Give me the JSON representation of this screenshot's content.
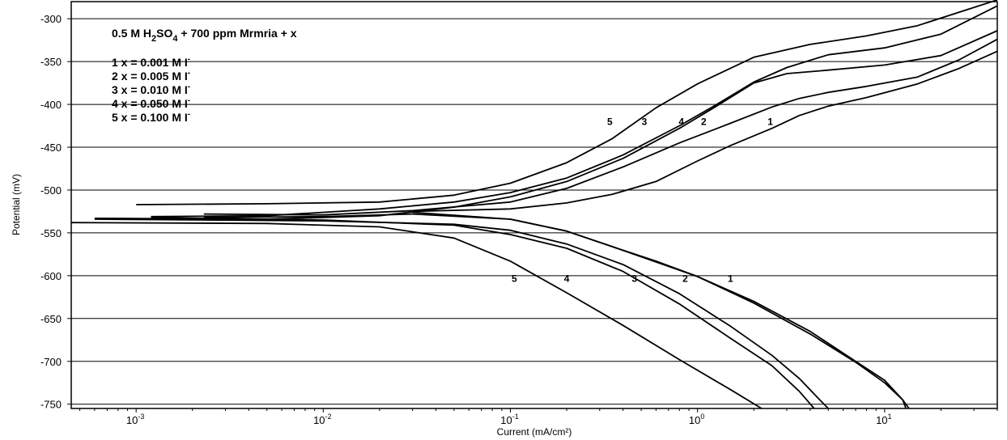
{
  "chart_data": {
    "type": "line",
    "title": "",
    "xlabel": "Current (mA/cm²)",
    "ylabel": "Potential (mV)",
    "x_scale": "log",
    "xlim": [
      0.00045,
      40
    ],
    "ylim": [
      -755,
      -280
    ],
    "grid": "horizontal",
    "x_ticks": [
      {
        "value": 0.001,
        "base": "10",
        "exp": "-3"
      },
      {
        "value": 0.01,
        "base": "10",
        "exp": "-2"
      },
      {
        "value": 0.1,
        "base": "10",
        "exp": "-1"
      },
      {
        "value": 1,
        "base": "10",
        "exp": "0"
      },
      {
        "value": 10,
        "base": "10",
        "exp": "1"
      }
    ],
    "y_ticks": [
      -300,
      -350,
      -400,
      -450,
      -500,
      -550,
      -600,
      -650,
      -700,
      -750
    ],
    "legend": {
      "heading": {
        "prefix": "0.5 M H",
        "sub1": "2",
        "mid": "SO",
        "sub2": "4",
        "suffix": " + 700 ppm Mrmria + x"
      },
      "entries": [
        {
          "text": "1 x = 0.001 M I",
          "sup": "-"
        },
        {
          "text": "2 x = 0.005 M I",
          "sup": "-"
        },
        {
          "text": "3 x = 0.010 M I",
          "sup": "-"
        },
        {
          "text": "4 x = 0.050 M I",
          "sup": "-"
        },
        {
          "text": "5 x = 0.100 M I",
          "sup": "-"
        }
      ]
    },
    "series": [
      {
        "label": "1",
        "anodic": [
          [
            0.03,
            -525
          ],
          [
            0.1,
            -522
          ],
          [
            0.2,
            -515
          ],
          [
            0.35,
            -505
          ],
          [
            0.6,
            -490
          ],
          [
            1.0,
            -466
          ],
          [
            1.5,
            -448
          ],
          [
            2.5,
            -428
          ],
          [
            3.5,
            -413
          ],
          [
            5,
            -402
          ],
          [
            8,
            -392
          ],
          [
            15,
            -376
          ],
          [
            25,
            -358
          ],
          [
            40,
            -338
          ]
        ],
        "cathodic": [
          [
            0.03,
            -526
          ],
          [
            0.1,
            -534
          ],
          [
            0.2,
            -548
          ],
          [
            0.35,
            -566
          ],
          [
            0.6,
            -584
          ],
          [
            1.0,
            -601
          ],
          [
            2.0,
            -630
          ],
          [
            4.0,
            -665
          ],
          [
            7.0,
            -700
          ],
          [
            10,
            -722
          ],
          [
            12.5,
            -745
          ],
          [
            13,
            -755
          ]
        ]
      },
      {
        "label": "2",
        "anodic": [
          [
            0.0023,
            -528
          ],
          [
            0.01,
            -529
          ],
          [
            0.03,
            -524
          ],
          [
            0.1,
            -514
          ],
          [
            0.2,
            -498
          ],
          [
            0.4,
            -473
          ],
          [
            0.8,
            -445
          ],
          [
            1.5,
            -422
          ],
          [
            2.5,
            -403
          ],
          [
            3.5,
            -393
          ],
          [
            5,
            -386
          ],
          [
            8,
            -379
          ],
          [
            15,
            -368
          ],
          [
            25,
            -348
          ],
          [
            40,
            -324
          ]
        ],
        "cathodic": [
          [
            0.0023,
            -532
          ],
          [
            0.01,
            -531
          ],
          [
            0.03,
            -528
          ],
          [
            0.1,
            -534
          ],
          [
            0.2,
            -548
          ],
          [
            0.35,
            -566
          ],
          [
            0.6,
            -583
          ],
          [
            1.0,
            -601
          ],
          [
            2.0,
            -632
          ],
          [
            4.0,
            -668
          ],
          [
            7.0,
            -701
          ],
          [
            10,
            -725
          ],
          [
            12.5,
            -745
          ],
          [
            13.5,
            -755
          ]
        ]
      },
      {
        "label": "3",
        "anodic": [
          [
            0.0006,
            -533
          ],
          [
            0.005,
            -534
          ],
          [
            0.02,
            -530
          ],
          [
            0.05,
            -520
          ],
          [
            0.1,
            -508
          ],
          [
            0.2,
            -490
          ],
          [
            0.4,
            -463
          ],
          [
            0.8,
            -428
          ],
          [
            1.2,
            -405
          ],
          [
            2,
            -375
          ],
          [
            3,
            -364
          ],
          [
            5,
            -360
          ],
          [
            10,
            -354
          ],
          [
            20,
            -343
          ],
          [
            40,
            -314
          ]
        ],
        "cathodic": [
          [
            0.0006,
            -534
          ],
          [
            0.01,
            -536
          ],
          [
            0.05,
            -540
          ],
          [
            0.1,
            -547
          ],
          [
            0.2,
            -563
          ],
          [
            0.4,
            -587
          ],
          [
            0.8,
            -621
          ],
          [
            1.5,
            -659
          ],
          [
            2.5,
            -693
          ],
          [
            3.5,
            -720
          ],
          [
            4.5,
            -745
          ],
          [
            5,
            -755
          ]
        ]
      },
      {
        "label": "4",
        "anodic": [
          [
            0.0012,
            -531
          ],
          [
            0.005,
            -530
          ],
          [
            0.02,
            -522
          ],
          [
            0.05,
            -514
          ],
          [
            0.1,
            -503
          ],
          [
            0.2,
            -486
          ],
          [
            0.4,
            -459
          ],
          [
            0.8,
            -425
          ],
          [
            1.2,
            -403
          ],
          [
            2,
            -374
          ],
          [
            3,
            -357
          ],
          [
            5,
            -342
          ],
          [
            10,
            -334
          ],
          [
            20,
            -318
          ],
          [
            40,
            -285
          ]
        ],
        "cathodic": [
          [
            0.0012,
            -532
          ],
          [
            0.01,
            -535
          ],
          [
            0.05,
            -541
          ],
          [
            0.1,
            -552
          ],
          [
            0.2,
            -568
          ],
          [
            0.4,
            -595
          ],
          [
            0.8,
            -633
          ],
          [
            1.5,
            -673
          ],
          [
            2.5,
            -705
          ],
          [
            3.5,
            -735
          ],
          [
            4.2,
            -755
          ]
        ]
      },
      {
        "label": "5",
        "anodic": [
          [
            0.001,
            -517
          ],
          [
            0.005,
            -516
          ],
          [
            0.02,
            -514
          ],
          [
            0.05,
            -506
          ],
          [
            0.1,
            -492
          ],
          [
            0.2,
            -468
          ],
          [
            0.35,
            -440
          ],
          [
            0.6,
            -404
          ],
          [
            1.0,
            -376
          ],
          [
            2,
            -345
          ],
          [
            4,
            -330
          ],
          [
            8,
            -320
          ],
          [
            15,
            -308
          ],
          [
            40,
            -278
          ]
        ],
        "cathodic": [
          [
            0.00045,
            -538
          ],
          [
            0.005,
            -539
          ],
          [
            0.02,
            -543
          ],
          [
            0.05,
            -556
          ],
          [
            0.1,
            -583
          ],
          [
            0.2,
            -620
          ],
          [
            0.4,
            -658
          ],
          [
            0.8,
            -698
          ],
          [
            1.5,
            -733
          ],
          [
            2.2,
            -755
          ]
        ]
      }
    ],
    "curve_labels": [
      {
        "text": "5",
        "x": 0.34,
        "y": -424
      },
      {
        "text": "3",
        "x": 0.52,
        "y": -424
      },
      {
        "text": "4",
        "x": 0.82,
        "y": -424
      },
      {
        "text": "2",
        "x": 1.08,
        "y": -424
      },
      {
        "text": "1",
        "x": 2.45,
        "y": -424
      },
      {
        "text": "5",
        "x": 0.105,
        "y": -607
      },
      {
        "text": "4",
        "x": 0.2,
        "y": -607
      },
      {
        "text": "3",
        "x": 0.46,
        "y": -607
      },
      {
        "text": "2",
        "x": 0.86,
        "y": -607
      },
      {
        "text": "1",
        "x": 1.5,
        "y": -607
      }
    ]
  }
}
